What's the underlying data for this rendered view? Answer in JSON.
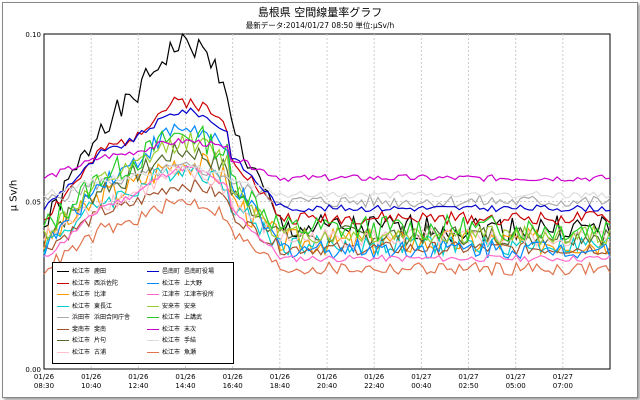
{
  "title": "島根県 空間線量率グラフ",
  "subtitle": "最新データ:2014/01/27 08:50 単位:μSv/h",
  "chart_data": {
    "type": "line",
    "ylabel": "μ Sv/h",
    "ylim": [
      0,
      0.1
    ],
    "yticks": [
      "0.00",
      "0.05",
      "0.10"
    ],
    "xticks": [
      [
        "01/26",
        "08:30"
      ],
      [
        "01/26",
        "10:40"
      ],
      [
        "01/26",
        "12:40"
      ],
      [
        "01/26",
        "14:40"
      ],
      [
        "01/26",
        "16:40"
      ],
      [
        "01/26",
        "18:40"
      ],
      [
        "01/26",
        "20:40"
      ],
      [
        "01/26",
        "22:40"
      ],
      [
        "01/27",
        "00:40"
      ],
      [
        "01/27",
        "02:50"
      ],
      [
        "01/27",
        "05:00"
      ],
      [
        "01/27",
        "07:00"
      ]
    ],
    "grid": true,
    "legend_position": "bottom-left",
    "series": [
      {
        "area": "松江市",
        "name": "鹿田",
        "color": "#000000",
        "base": 0.042,
        "peak": 0.097,
        "noise": 0.004,
        "seed": 1
      },
      {
        "area": "松江市",
        "name": "西浜佐陀",
        "color": "#cc0000",
        "base": 0.045,
        "peak": 0.08,
        "noise": 0.002,
        "seed": 2
      },
      {
        "area": "松江市",
        "name": "比津",
        "color": "#ff9900",
        "base": 0.038,
        "peak": 0.062,
        "noise": 0.004,
        "seed": 3
      },
      {
        "area": "松江市",
        "name": "東長江",
        "color": "#00cccc",
        "base": 0.037,
        "peak": 0.06,
        "noise": 0.003,
        "seed": 4
      },
      {
        "area": "浜田市",
        "name": "浜田合同庁舎",
        "color": "#aaaaaa",
        "base": 0.05,
        "peak": 0.06,
        "noise": 0.002,
        "seed": 5
      },
      {
        "area": "斐南市",
        "name": "斐南",
        "color": "#a0522d",
        "base": 0.036,
        "peak": 0.055,
        "noise": 0.002,
        "seed": 6
      },
      {
        "area": "松江市",
        "name": "片句",
        "color": "#556b2f",
        "base": 0.04,
        "peak": 0.065,
        "noise": 0.003,
        "seed": 7
      },
      {
        "area": "松江市",
        "name": "古浦",
        "color": "#ffc0cb",
        "base": 0.039,
        "peak": 0.058,
        "noise": 0.003,
        "seed": 8
      },
      {
        "area": "邑南町",
        "name": "邑南町役場",
        "color": "#0000cc",
        "base": 0.048,
        "peak": 0.077,
        "noise": 0.001,
        "seed": 9
      },
      {
        "area": "松江市",
        "name": "上大野",
        "color": "#0088ff",
        "base": 0.036,
        "peak": 0.072,
        "noise": 0.003,
        "seed": 10
      },
      {
        "area": "江津市",
        "name": "江津市役所",
        "color": "#ff66cc",
        "base": 0.033,
        "peak": 0.06,
        "noise": 0.001,
        "seed": 11
      },
      {
        "area": "安来市",
        "name": "安来",
        "color": "#9acd32",
        "base": 0.04,
        "peak": 0.068,
        "noise": 0.003,
        "seed": 12
      },
      {
        "area": "松江市",
        "name": "上講武",
        "color": "#22cc22",
        "base": 0.042,
        "peak": 0.07,
        "noise": 0.004,
        "seed": 13
      },
      {
        "area": "松江市",
        "name": "末次",
        "color": "#cc00cc",
        "base": 0.057,
        "peak": 0.068,
        "noise": 0.001,
        "seed": 14
      },
      {
        "area": "松江市",
        "name": "手結",
        "color": "#dddddd",
        "base": 0.052,
        "peak": 0.06,
        "noise": 0.001,
        "seed": 15
      },
      {
        "area": "松江市",
        "name": "魚瀬",
        "color": "#e0734d",
        "base": 0.03,
        "peak": 0.05,
        "noise": 0.002,
        "seed": 16
      }
    ]
  }
}
